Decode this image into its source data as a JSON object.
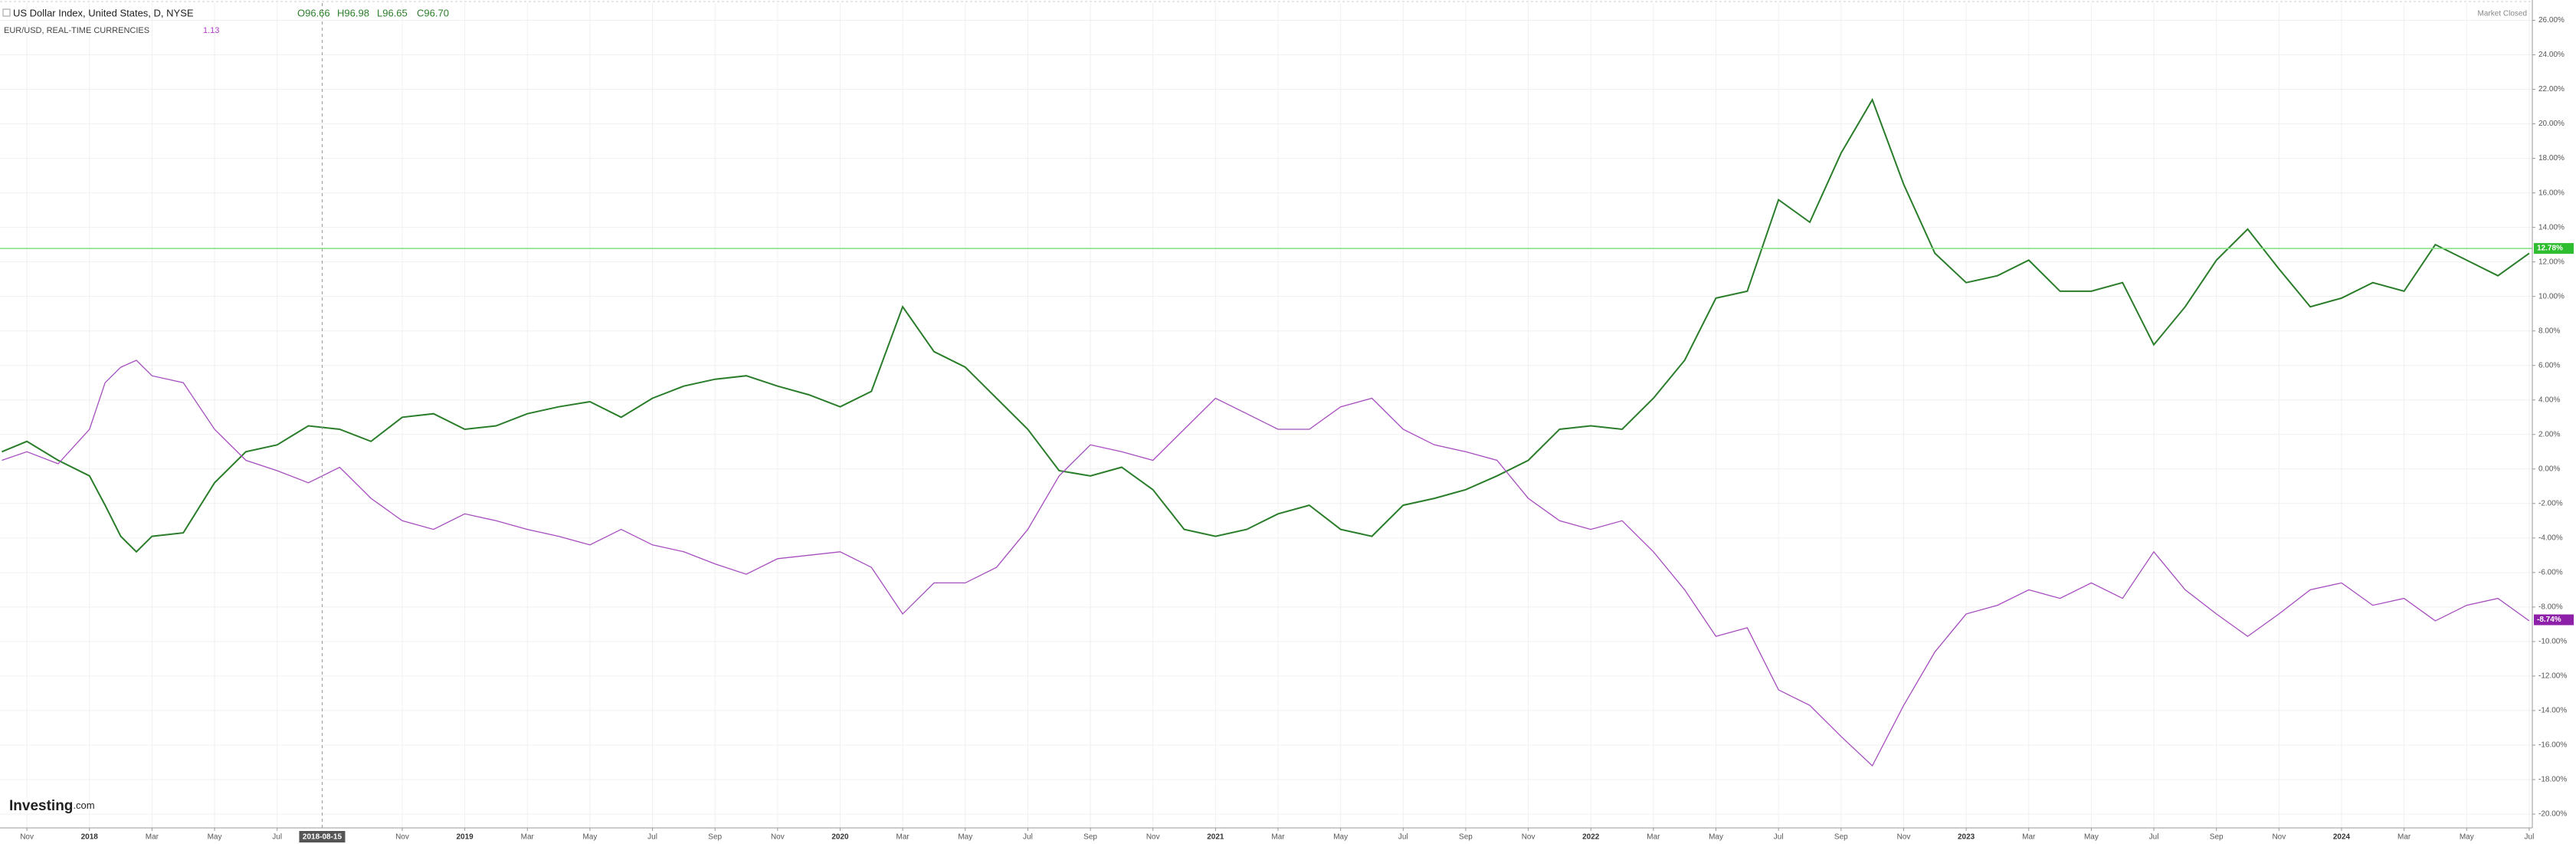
{
  "chart_data": {
    "type": "line",
    "xlim": [
      -0.86,
      80.1
    ],
    "ylim": [
      -20.8,
      27
    ],
    "xticks": [
      {
        "value": 0,
        "label": "Nov"
      },
      {
        "value": 2,
        "label": "2018"
      },
      {
        "value": 4,
        "label": "Mar"
      },
      {
        "value": 6,
        "label": "May"
      },
      {
        "value": 8,
        "label": "Jul"
      },
      {
        "value": 12,
        "label": "Nov"
      },
      {
        "value": 14,
        "label": "2019"
      },
      {
        "value": 16,
        "label": "Mar"
      },
      {
        "value": 18,
        "label": "May"
      },
      {
        "value": 20,
        "label": "Jul"
      },
      {
        "value": 22,
        "label": "Sep"
      },
      {
        "value": 24,
        "label": "Nov"
      },
      {
        "value": 26,
        "label": "2020"
      },
      {
        "value": 28,
        "label": "Mar"
      },
      {
        "value": 30,
        "label": "May"
      },
      {
        "value": 32,
        "label": "Jul"
      },
      {
        "value": 34,
        "label": "Sep"
      },
      {
        "value": 36,
        "label": "Nov"
      },
      {
        "value": 38,
        "label": "2021"
      },
      {
        "value": 40,
        "label": "Mar"
      },
      {
        "value": 42,
        "label": "May"
      },
      {
        "value": 44,
        "label": "Jul"
      },
      {
        "value": 46,
        "label": "Sep"
      },
      {
        "value": 48,
        "label": "Nov"
      },
      {
        "value": 50,
        "label": "2022"
      },
      {
        "value": 52,
        "label": "Mar"
      },
      {
        "value": 54,
        "label": "May"
      },
      {
        "value": 56,
        "label": "Jul"
      },
      {
        "value": 58,
        "label": "Sep"
      },
      {
        "value": 60,
        "label": "Nov"
      },
      {
        "value": 62,
        "label": "2023"
      },
      {
        "value": 64,
        "label": "Mar"
      },
      {
        "value": 66,
        "label": "May"
      },
      {
        "value": 68,
        "label": "Jul"
      },
      {
        "value": 70,
        "label": "Sep"
      },
      {
        "value": 72,
        "label": "Nov"
      },
      {
        "value": 74,
        "label": "2024"
      },
      {
        "value": 76,
        "label": "Mar"
      },
      {
        "value": 78,
        "label": "May"
      },
      {
        "value": 80,
        "label": "Jul"
      }
    ],
    "yticks": [
      {
        "value": -20,
        "label": "-20.00%"
      },
      {
        "value": -18,
        "label": "-18.00%"
      },
      {
        "value": -16,
        "label": "-16.00%"
      },
      {
        "value": -14,
        "label": "-14.00%"
      },
      {
        "value": -12,
        "label": "-12.00%"
      },
      {
        "value": -10,
        "label": "-10.00%"
      },
      {
        "value": -8,
        "label": "-8.00%"
      },
      {
        "value": -6,
        "label": "-6.00%"
      },
      {
        "value": -4,
        "label": "-4.00%"
      },
      {
        "value": -2,
        "label": "-2.00%"
      },
      {
        "value": 0,
        "label": "0.00%"
      },
      {
        "value": 2,
        "label": "2.00%"
      },
      {
        "value": 4,
        "label": "4.00%"
      },
      {
        "value": 6,
        "label": "6.00%"
      },
      {
        "value": 8,
        "label": "8.00%"
      },
      {
        "value": 10,
        "label": "10.00%"
      },
      {
        "value": 12,
        "label": "12.00%"
      },
      {
        "value": 14,
        "label": "14.00%"
      },
      {
        "value": 16,
        "label": "16.00%"
      },
      {
        "value": 18,
        "label": "18.00%"
      },
      {
        "value": 20,
        "label": "20.00%"
      },
      {
        "value": 22,
        "label": "22.00%"
      },
      {
        "value": 24,
        "label": "24.00%"
      },
      {
        "value": 26,
        "label": "26.00%"
      }
    ],
    "grid": true,
    "x": [
      -0.8,
      0,
      1,
      2,
      2.5,
      3,
      3.5,
      4,
      5,
      6,
      7,
      8,
      9,
      10,
      11,
      12,
      13,
      14,
      15,
      16,
      17,
      18,
      19,
      20,
      21,
      22,
      23,
      24,
      25,
      26,
      27,
      28,
      29,
      30,
      31,
      32,
      33,
      34,
      35,
      36,
      37,
      38,
      39,
      40,
      41,
      42,
      43,
      44,
      45,
      46,
      47,
      48,
      49,
      50,
      51,
      52,
      53,
      54,
      55,
      56,
      57,
      58,
      59,
      60,
      61,
      62,
      63,
      64,
      65,
      66,
      67,
      68,
      69,
      70,
      71,
      72,
      73,
      74,
      75,
      76,
      77,
      78,
      79,
      80
    ],
    "series": [
      {
        "name": "US Dollar Index, United States, D, NYSE",
        "color": "#2a7d2a",
        "values": [
          1.0,
          1.6,
          0.5,
          -0.4,
          -2.1,
          -3.9,
          -4.8,
          -3.9,
          -3.7,
          -0.8,
          1.0,
          1.4,
          2.5,
          2.3,
          1.6,
          3.0,
          3.2,
          2.3,
          2.5,
          3.2,
          3.6,
          3.9,
          3.0,
          4.1,
          4.8,
          5.2,
          5.4,
          4.8,
          4.3,
          3.6,
          4.5,
          9.4,
          6.8,
          5.9,
          4.1,
          2.3,
          -0.1,
          -0.4,
          0.1,
          -1.2,
          -3.5,
          -3.9,
          -3.5,
          -2.6,
          -2.1,
          -3.5,
          -3.9,
          -2.1,
          -1.7,
          -1.2,
          -0.4,
          0.5,
          2.3,
          2.5,
          2.3,
          4.1,
          6.3,
          9.9,
          10.3,
          15.6,
          14.3,
          18.3,
          21.4,
          16.5,
          12.5,
          10.8,
          11.2,
          12.1,
          10.3,
          10.3,
          10.8,
          7.2,
          9.4,
          12.1,
          13.9,
          11.6,
          9.4,
          9.9,
          10.8,
          10.3,
          13.0,
          12.1,
          11.2,
          12.5
        ]
      },
      {
        "name": "EUR/USD, REAL-TIME CURRENCIES",
        "color": "#a64dbf",
        "values": [
          0.5,
          1.0,
          0.3,
          2.3,
          5.0,
          5.9,
          6.3,
          5.4,
          5.0,
          2.3,
          0.5,
          -0.1,
          -0.8,
          0.1,
          -1.7,
          -3.0,
          -3.5,
          -2.6,
          -3.0,
          -3.5,
          -3.9,
          -4.4,
          -3.5,
          -4.4,
          -4.8,
          -5.5,
          -6.1,
          -5.2,
          -5.0,
          -4.8,
          -5.7,
          -8.4,
          -6.6,
          -6.6,
          -5.7,
          -3.5,
          -0.4,
          1.4,
          1.0,
          0.5,
          2.3,
          4.1,
          3.2,
          2.3,
          2.3,
          3.6,
          4.1,
          2.3,
          1.4,
          1.0,
          0.5,
          -1.7,
          -3.0,
          -3.5,
          -3.0,
          -4.8,
          -7.0,
          -9.7,
          -9.2,
          -12.8,
          -13.7,
          -15.5,
          -17.2,
          -13.7,
          -10.6,
          -8.4,
          -7.9,
          -7.0,
          -7.5,
          -6.6,
          -7.5,
          -4.8,
          -7.0,
          -8.4,
          -9.7,
          -8.4,
          -7.0,
          -6.6,
          -7.9,
          -7.5,
          -8.8,
          -7.9,
          -7.5,
          -8.8
        ]
      }
    ],
    "ohlc": [
      "O96.66",
      "H96.98",
      "L96.65",
      "C96.70"
    ],
    "eur_last": "1.13",
    "price_line": {
      "value": 12.78,
      "label": "12.78%",
      "color": "#7ee07e"
    },
    "eur_marker": {
      "value": -8.74,
      "label": "-8.74%"
    },
    "crosshair": {
      "value": 9.44,
      "label": "2018-08-15"
    },
    "status": "Market Closed",
    "brand": "Investing",
    "brand_suffix": ".com"
  }
}
